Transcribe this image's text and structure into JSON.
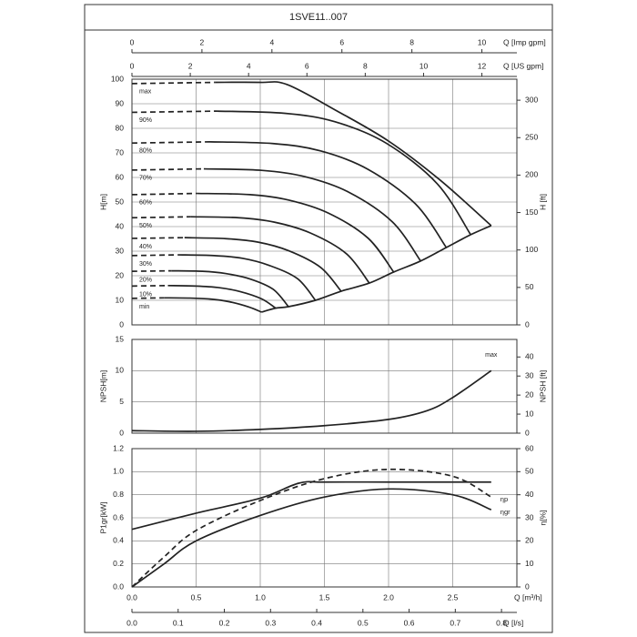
{
  "title": "1SVE11..007",
  "chart_data": [
    {
      "type": "line",
      "color": "#222",
      "xlim": [
        0,
        3
      ],
      "ylabel": "H[m]",
      "ylim": [
        0,
        100
      ],
      "yticks": [
        0,
        10,
        20,
        30,
        40,
        50,
        60,
        70,
        80,
        90,
        100
      ],
      "y2label": "H [ft]",
      "y2lim": [
        0,
        328.08
      ],
      "y2ticks": [
        0,
        50,
        100,
        150,
        200,
        250,
        300
      ],
      "grid": true,
      "top_axes": [
        {
          "label": "Q [Imp gpm]",
          "xlim": [
            0,
            11
          ],
          "xticks": [
            0,
            2,
            4,
            6,
            8,
            10
          ]
        },
        {
          "label": "Q [US gpm]",
          "xlim": [
            0,
            13.2
          ],
          "xticks": [
            0,
            2,
            4,
            6,
            8,
            10,
            12
          ]
        }
      ],
      "series": [
        {
          "name": "max",
          "x": [
            0.65,
            1.0,
            1.21,
            1.6,
            2.0,
            2.4,
            2.8
          ],
          "values": [
            98.7,
            98.7,
            97.8,
            87,
            74.8,
            59,
            40.4
          ]
        },
        {
          "style": "dashed",
          "x": [
            0,
            0.65
          ],
          "values": [
            98.2,
            98.7
          ]
        },
        {
          "name": "90%",
          "x": [
            0.66,
            1.19,
            1.58,
            1.98,
            2.38,
            2.64
          ],
          "values": [
            87,
            86.1,
            82.7,
            74,
            57.4,
            36.7
          ]
        },
        {
          "style": "dashed",
          "x": [
            0,
            0.66
          ],
          "values": [
            86.5,
            87
          ]
        },
        {
          "name": "80%",
          "x": [
            0.61,
            1.1,
            1.47,
            1.84,
            2.21,
            2.45
          ],
          "values": [
            74.5,
            73.8,
            70.8,
            63.3,
            49.2,
            31.5
          ]
        },
        {
          "style": "dashed",
          "x": [
            0,
            0.61
          ],
          "values": [
            74,
            74.5
          ]
        },
        {
          "name": "70%",
          "x": [
            0.56,
            1.01,
            1.35,
            1.69,
            2.03,
            2.25
          ],
          "values": [
            63.5,
            62.9,
            60.3,
            54,
            41.9,
            26
          ]
        },
        {
          "style": "dashed",
          "x": [
            0,
            0.56
          ],
          "values": [
            63,
            63.5
          ]
        },
        {
          "name": "60%",
          "x": [
            0.51,
            0.92,
            1.22,
            1.53,
            1.84,
            2.04
          ],
          "values": [
            53.5,
            53,
            50.8,
            45.5,
            35.3,
            21.5
          ]
        },
        {
          "style": "dashed",
          "x": [
            0,
            0.51
          ],
          "values": [
            53,
            53.5
          ]
        },
        {
          "name": "50%",
          "x": [
            0.46,
            0.83,
            1.11,
            1.39,
            1.67,
            1.85
          ],
          "values": [
            44,
            43.6,
            41.8,
            37.4,
            29,
            17
          ]
        },
        {
          "style": "dashed",
          "x": [
            0,
            0.46
          ],
          "values": [
            43.6,
            44
          ]
        },
        {
          "name": "40%",
          "x": [
            0.41,
            0.73,
            0.98,
            1.22,
            1.47,
            1.63
          ],
          "values": [
            35.5,
            35.1,
            33.7,
            30.2,
            23.4,
            13.7
          ]
        },
        {
          "style": "dashed",
          "x": [
            0,
            0.41
          ],
          "values": [
            35.2,
            35.5
          ]
        },
        {
          "name": "30%",
          "x": [
            0.36,
            0.64,
            0.86,
            1.07,
            1.29,
            1.43
          ],
          "values": [
            28.5,
            28.2,
            27.1,
            24.2,
            18.8,
            10
          ]
        },
        {
          "style": "dashed",
          "x": [
            0,
            0.36
          ],
          "values": [
            28.2,
            28.5
          ]
        },
        {
          "name": "20%",
          "x": [
            0.31,
            0.55,
            0.73,
            0.92,
            1.1,
            1.22
          ],
          "values": [
            22,
            21.8,
            20.9,
            18.7,
            14.5,
            7.4
          ]
        },
        {
          "style": "dashed",
          "x": [
            0,
            0.31
          ],
          "values": [
            21.8,
            22
          ]
        },
        {
          "name": "10%",
          "x": [
            0.28,
            0.5,
            0.67,
            0.84,
            1.01,
            1.12
          ],
          "values": [
            16,
            15.8,
            15.2,
            13.6,
            10.6,
            6.8
          ]
        },
        {
          "style": "dashed",
          "x": [
            0,
            0.28
          ],
          "values": [
            15.8,
            16
          ]
        },
        {
          "name": "min",
          "x": [
            0.25,
            0.45,
            0.61,
            0.76,
            0.91,
            1.01
          ],
          "values": [
            11,
            10.9,
            10.5,
            9.4,
            7.3,
            5.2
          ]
        },
        {
          "style": "dashed",
          "x": [
            0,
            0.25
          ],
          "values": [
            10.8,
            11
          ]
        },
        {
          "x": [
            1.01,
            1.12,
            1.22,
            1.43,
            1.63,
            1.85,
            2.04,
            2.25,
            2.45,
            2.64,
            2.8
          ],
          "values": [
            5.2,
            6.8,
            7.4,
            10,
            13.7,
            17,
            21.5,
            26,
            31.5,
            36.7,
            40.4
          ]
        }
      ]
    },
    {
      "type": "line",
      "color": "#222",
      "xlim": [
        0,
        3
      ],
      "ylabel": "NPSH[m]",
      "ylim": [
        0,
        15
      ],
      "yticks": [
        0,
        5,
        10,
        15
      ],
      "y2label": "NPSH [ft]",
      "y2lim": [
        0,
        49.21
      ],
      "y2ticks": [
        0,
        10,
        20,
        30,
        40
      ],
      "grid": true,
      "series": [
        {
          "name": "max",
          "x": [
            0,
            0.5,
            1.0,
            1.5,
            2.0,
            2.3,
            2.5,
            2.8
          ],
          "values": [
            0.4,
            0.3,
            0.6,
            1.2,
            2.2,
            3.6,
            5.7,
            10
          ]
        }
      ]
    },
    {
      "type": "line",
      "color": "#222",
      "xlabel": "Q [m³/h]",
      "xlim": [
        0,
        3
      ],
      "xticks": [
        {
          "value": 0,
          "label": "0.0"
        },
        0.5,
        {
          "value": 1,
          "label": "1.0"
        },
        1.5,
        {
          "value": 2,
          "label": "2.0"
        },
        2.5
      ],
      "ylabel": "P1gr[kW]",
      "ylim": [
        0,
        1.2
      ],
      "yticks": [
        {
          "value": 0,
          "label": "0.0"
        },
        0.2,
        0.4,
        0.6,
        0.8,
        {
          "value": 1,
          "label": "1.0"
        },
        1.2
      ],
      "y2label": "η[%]",
      "y2lim": [
        0,
        60
      ],
      "y2ticks": [
        0,
        10,
        20,
        30,
        40,
        50,
        60
      ],
      "grid": true,
      "bottom_axes": [
        {
          "label": "Q [l/s]",
          "xlim": [
            0,
            0.8333
          ],
          "xticks": [
            {
              "value": 0,
              "label": "0.0"
            },
            0.1,
            0.2,
            0.3,
            0.4,
            0.5,
            0.6,
            0.7,
            0.8
          ]
        }
      ],
      "series": [
        {
          "x": [
            0,
            0.5,
            1.0,
            1.3,
            1.5,
            2.0,
            2.5,
            2.8
          ],
          "values": [
            0.5,
            0.64,
            0.77,
            0.9,
            0.91,
            0.91,
            0.91,
            0.91
          ]
        },
        {
          "name": "ηp",
          "style": "dashed",
          "axis": "y2",
          "x": [
            0,
            0.25,
            0.5,
            1.0,
            1.5,
            2.0,
            2.5,
            2.8
          ],
          "values": [
            0,
            13,
            24.5,
            37.5,
            47,
            51,
            48,
            39
          ]
        },
        {
          "name": "ηgr",
          "axis": "y2",
          "x": [
            0,
            0.25,
            0.5,
            1.0,
            1.5,
            2.0,
            2.5,
            2.8
          ],
          "values": [
            0,
            10,
            20,
            31,
            39,
            42.5,
            40,
            33.5
          ]
        }
      ]
    }
  ]
}
